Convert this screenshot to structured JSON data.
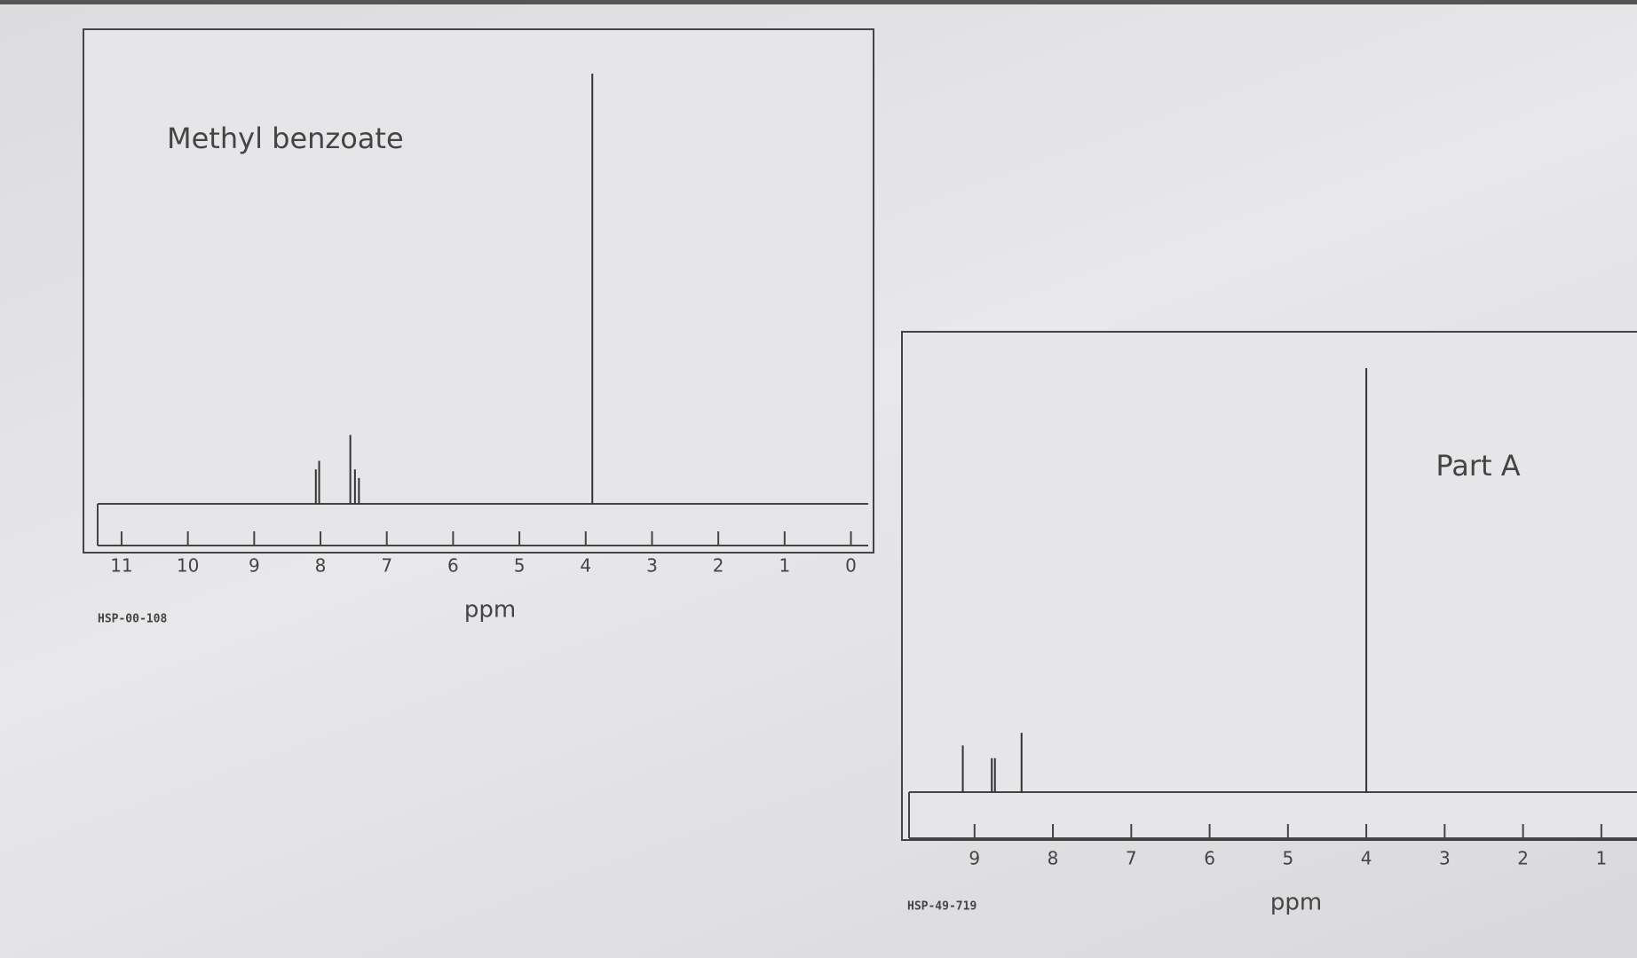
{
  "chart_data": [
    {
      "type": "spectrum",
      "title": "Methyl benzoate",
      "code": "HSP-00-108",
      "xlabel": "ppm",
      "x": [
        8.07,
        8.02,
        7.55,
        7.48,
        7.42,
        3.9
      ],
      "values": [
        0.08,
        0.1,
        0.16,
        0.08,
        0.06,
        1.0
      ],
      "xlim": [
        11.2,
        -0.1
      ],
      "xticks": [
        11,
        10,
        9,
        8,
        7,
        6,
        5,
        4,
        3,
        2,
        1,
        0
      ],
      "color": "#333333"
    },
    {
      "type": "spectrum",
      "title": "Part A",
      "code": "HSP-49-719",
      "xlabel": "ppm",
      "x": [
        9.15,
        8.78,
        8.74,
        8.4,
        4.0
      ],
      "values": [
        0.11,
        0.08,
        0.08,
        0.14,
        1.0
      ],
      "xlim": [
        9.7,
        0.5
      ],
      "xticks": [
        9,
        8,
        7,
        6,
        5,
        4,
        3,
        2,
        1
      ],
      "color": "#333333"
    }
  ]
}
